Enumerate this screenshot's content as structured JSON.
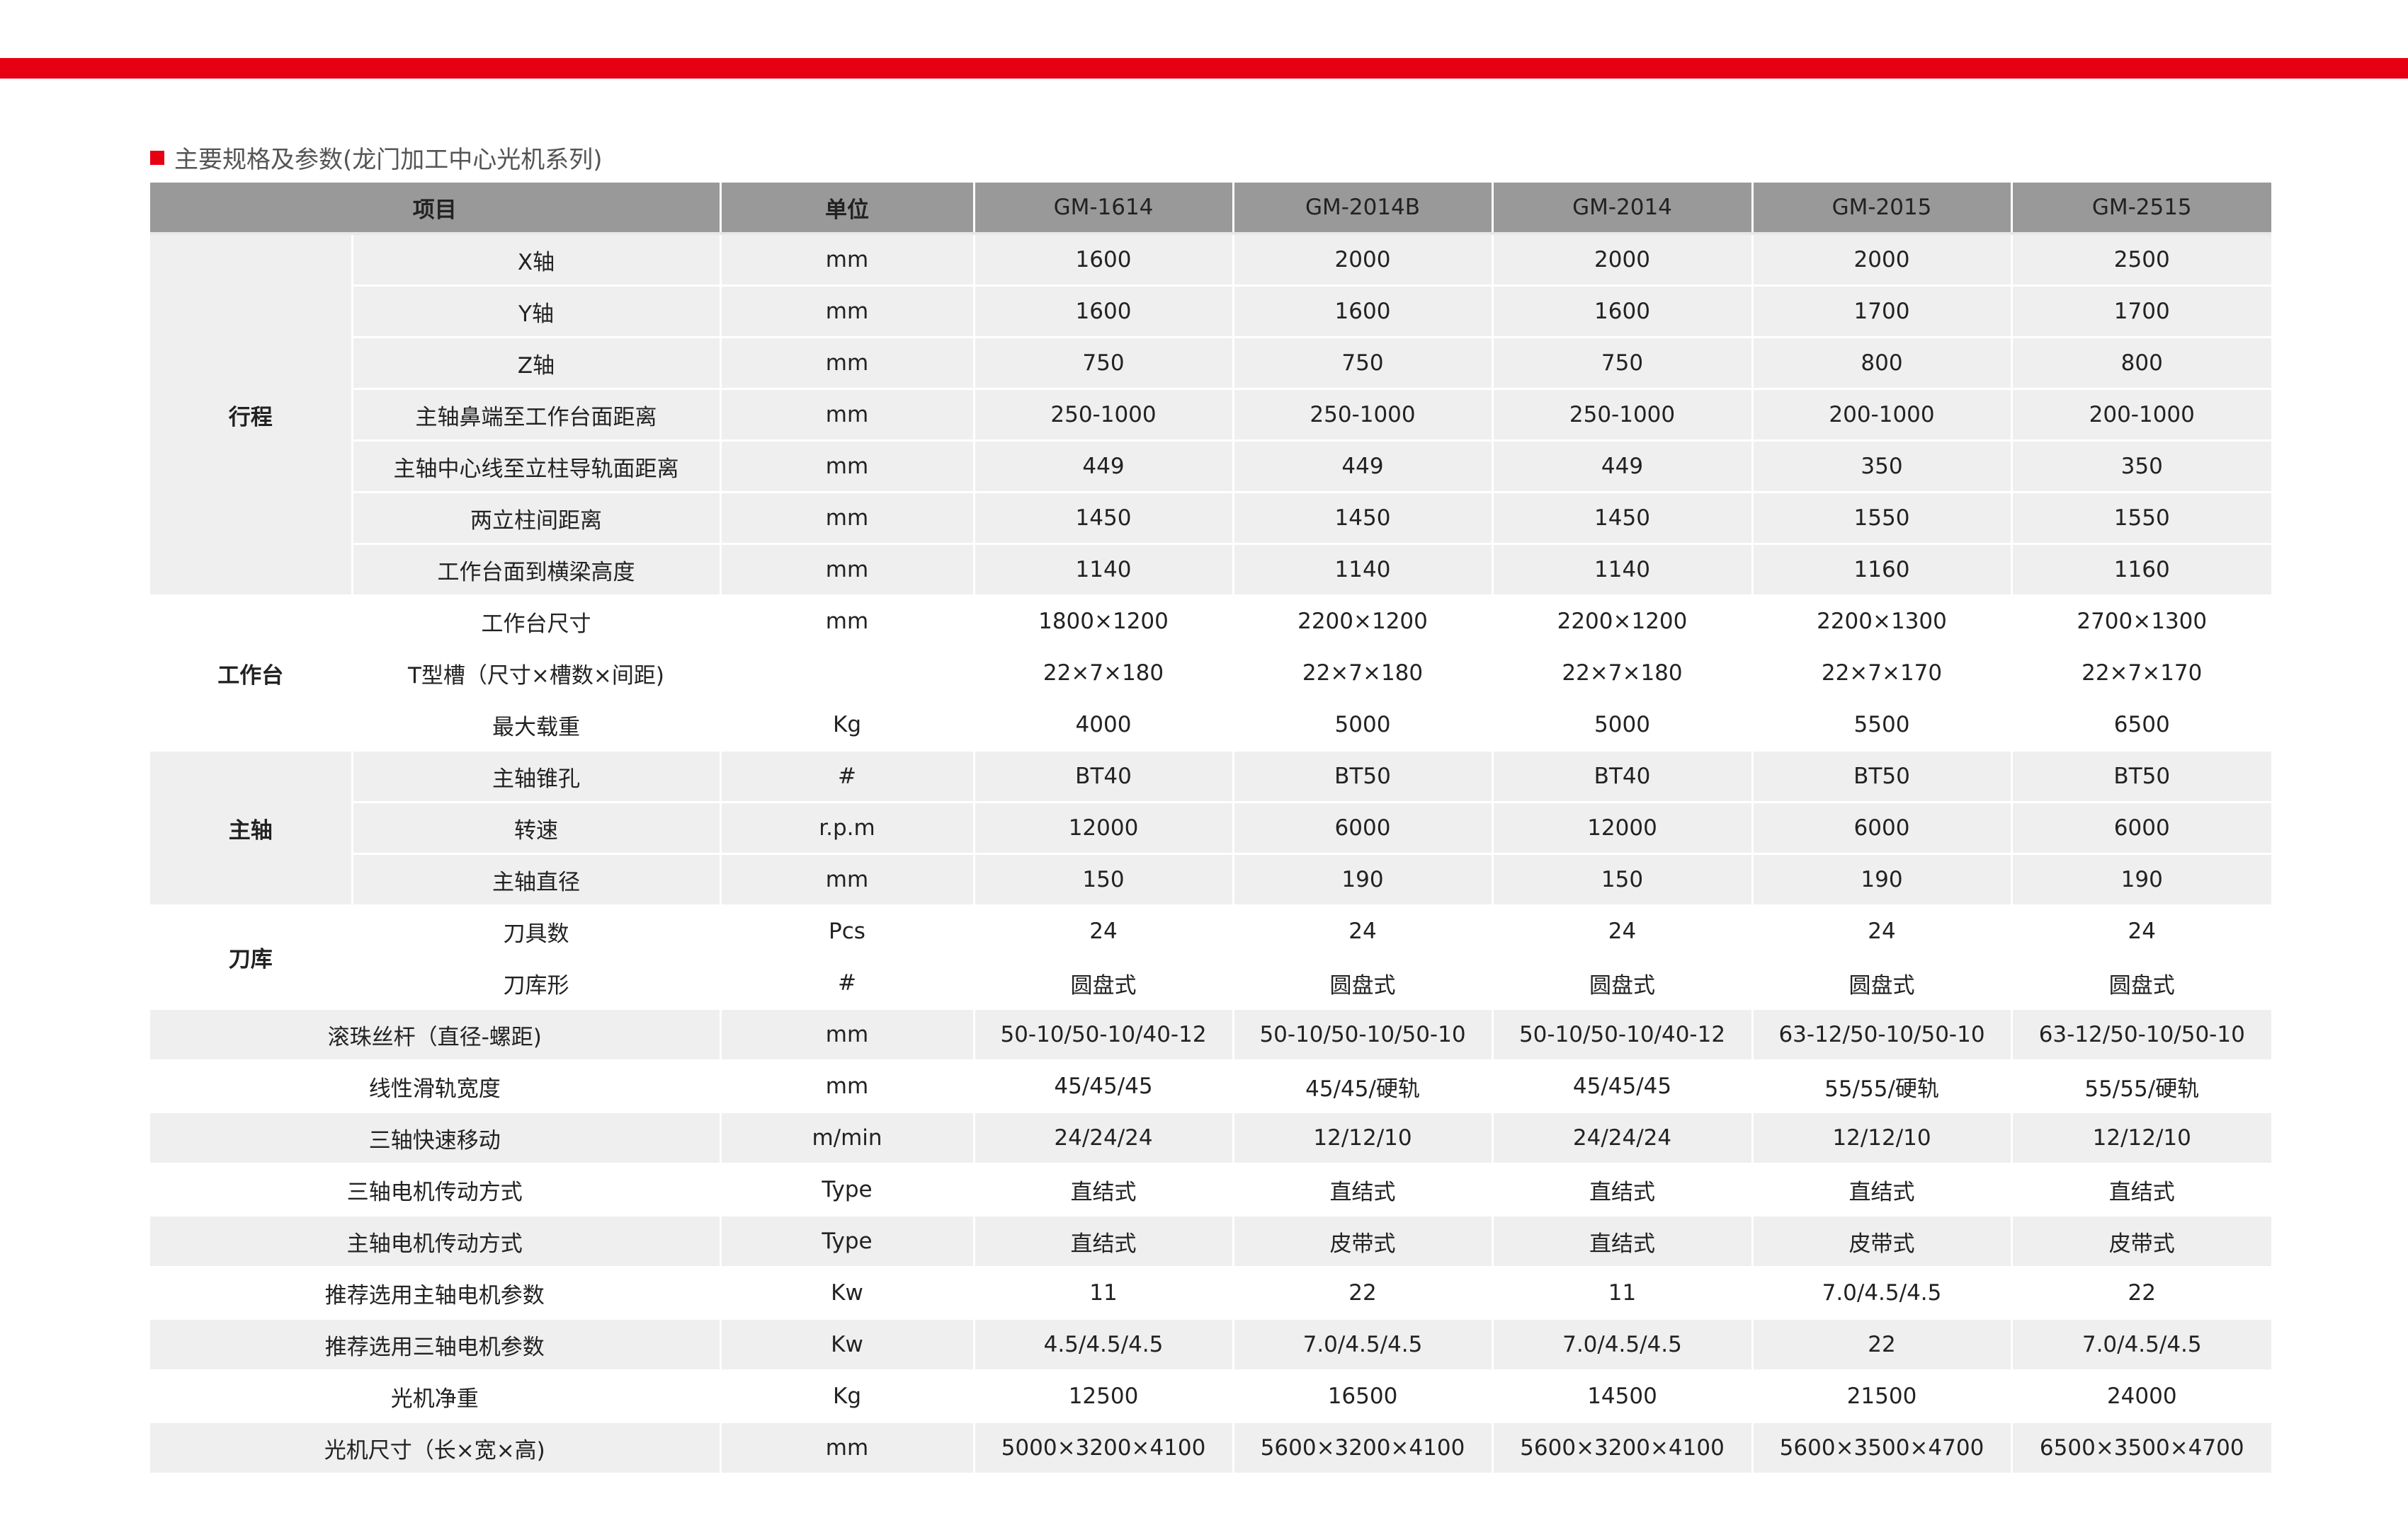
{
  "title": "主要规格及参数(龙门加工中心光机系列)",
  "colors": {
    "accent": "#e60012",
    "header_bg": "#999999",
    "stripe_bg": "#efefef"
  },
  "header": {
    "item": "项目",
    "unit": "单位",
    "models": [
      "GM-1614",
      "GM-2014B",
      "GM-2014",
      "GM-2015",
      "GM-2515"
    ]
  },
  "sections": [
    {
      "group": "行程",
      "shade": "gray",
      "rows": [
        {
          "item": "X轴",
          "unit": "mm",
          "values": [
            "1600",
            "2000",
            "2000",
            "2000",
            "2500"
          ]
        },
        {
          "item": "Y轴",
          "unit": "mm",
          "values": [
            "1600",
            "1600",
            "1600",
            "1700",
            "1700"
          ]
        },
        {
          "item": "Z轴",
          "unit": "mm",
          "values": [
            "750",
            "750",
            "750",
            "800",
            "800"
          ]
        },
        {
          "item": "主轴鼻端至工作台面距离",
          "unit": "mm",
          "values": [
            "250-1000",
            "250-1000",
            "250-1000",
            "200-1000",
            "200-1000"
          ]
        },
        {
          "item": "主轴中心线至立柱导轨面距离",
          "unit": "mm",
          "values": [
            "449",
            "449",
            "449",
            "350",
            "350"
          ]
        },
        {
          "item": "两立柱间距离",
          "unit": "mm",
          "values": [
            "1450",
            "1450",
            "1450",
            "1550",
            "1550"
          ]
        },
        {
          "item": "工作台面到横梁高度",
          "unit": "mm",
          "values": [
            "1140",
            "1140",
            "1140",
            "1160",
            "1160"
          ]
        }
      ]
    },
    {
      "group": "工作台",
      "shade": "white",
      "rows": [
        {
          "item": "工作台尺寸",
          "unit": "mm",
          "values": [
            "1800×1200",
            "2200×1200",
            "2200×1200",
            "2200×1300",
            "2700×1300"
          ]
        },
        {
          "item": "T型槽（尺寸×槽数×间距)",
          "unit": "",
          "values": [
            "22×7×180",
            "22×7×180",
            "22×7×180",
            "22×7×170",
            "22×7×170"
          ]
        },
        {
          "item": "最大载重",
          "unit": "Kg",
          "values": [
            "4000",
            "5000",
            "5000",
            "5500",
            "6500"
          ]
        }
      ]
    },
    {
      "group": "主轴",
      "shade": "gray",
      "rows": [
        {
          "item": "主轴锥孔",
          "unit": "#",
          "values": [
            "BT40",
            "BT50",
            "BT40",
            "BT50",
            "BT50"
          ]
        },
        {
          "item": "转速",
          "unit": "r.p.m",
          "values": [
            "12000",
            "6000",
            "12000",
            "6000",
            "6000"
          ]
        },
        {
          "item": "主轴直径",
          "unit": "mm",
          "values": [
            "150",
            "190",
            "150",
            "190",
            "190"
          ]
        }
      ]
    },
    {
      "group": "刀库",
      "shade": "white",
      "rows": [
        {
          "item": "刀具数",
          "unit": "Pcs",
          "values": [
            "24",
            "24",
            "24",
            "24",
            "24"
          ]
        },
        {
          "item": "刀库形",
          "unit": "#",
          "values": [
            "圆盘式",
            "圆盘式",
            "圆盘式",
            "圆盘式",
            "圆盘式"
          ]
        }
      ]
    },
    {
      "group": "",
      "shade": "gray",
      "rows": [
        {
          "item": "滚珠丝杆（直径-螺距)",
          "unit": "mm",
          "values": [
            "50-10/50-10/40-12",
            "50-10/50-10/50-10",
            "50-10/50-10/40-12",
            "63-12/50-10/50-10",
            "63-12/50-10/50-10"
          ]
        }
      ]
    },
    {
      "group": "",
      "shade": "white",
      "rows": [
        {
          "item": "线性滑轨宽度",
          "unit": "mm",
          "values": [
            "45/45/45",
            "45/45/硬轨",
            "45/45/45",
            "55/55/硬轨",
            "55/55/硬轨"
          ]
        }
      ]
    },
    {
      "group": "",
      "shade": "gray",
      "rows": [
        {
          "item": "三轴快速移动",
          "unit": "m/min",
          "values": [
            "24/24/24",
            "12/12/10",
            "24/24/24",
            "12/12/10",
            "12/12/10"
          ]
        }
      ]
    },
    {
      "group": "",
      "shade": "white",
      "rows": [
        {
          "item": "三轴电机传动方式",
          "unit": "Type",
          "values": [
            "直结式",
            "直结式",
            "直结式",
            "直结式",
            "直结式"
          ]
        }
      ]
    },
    {
      "group": "",
      "shade": "gray",
      "rows": [
        {
          "item": "主轴电机传动方式",
          "unit": "Type",
          "values": [
            "直结式",
            "皮带式",
            "直结式",
            "皮带式",
            "皮带式"
          ]
        }
      ]
    },
    {
      "group": "",
      "shade": "white",
      "rows": [
        {
          "item": "推荐选用主轴电机参数",
          "unit": "Kw",
          "values": [
            "11",
            "22",
            "11",
            "7.0/4.5/4.5",
            "22"
          ]
        }
      ]
    },
    {
      "group": "",
      "shade": "gray",
      "rows": [
        {
          "item": "推荐选用三轴电机参数",
          "unit": "Kw",
          "values": [
            "4.5/4.5/4.5",
            "7.0/4.5/4.5",
            "7.0/4.5/4.5",
            "22",
            "7.0/4.5/4.5"
          ]
        }
      ]
    },
    {
      "group": "",
      "shade": "white",
      "rows": [
        {
          "item": "光机净重",
          "unit": "Kg",
          "values": [
            "12500",
            "16500",
            "14500",
            "21500",
            "24000"
          ]
        }
      ]
    },
    {
      "group": "",
      "shade": "gray",
      "rows": [
        {
          "item": "光机尺寸（长×宽×高)",
          "unit": "mm",
          "values": [
            "5000×3200×4100",
            "5600×3200×4100",
            "5600×3200×4100",
            "5600×3500×4700",
            "6500×3500×4700"
          ]
        }
      ]
    }
  ]
}
